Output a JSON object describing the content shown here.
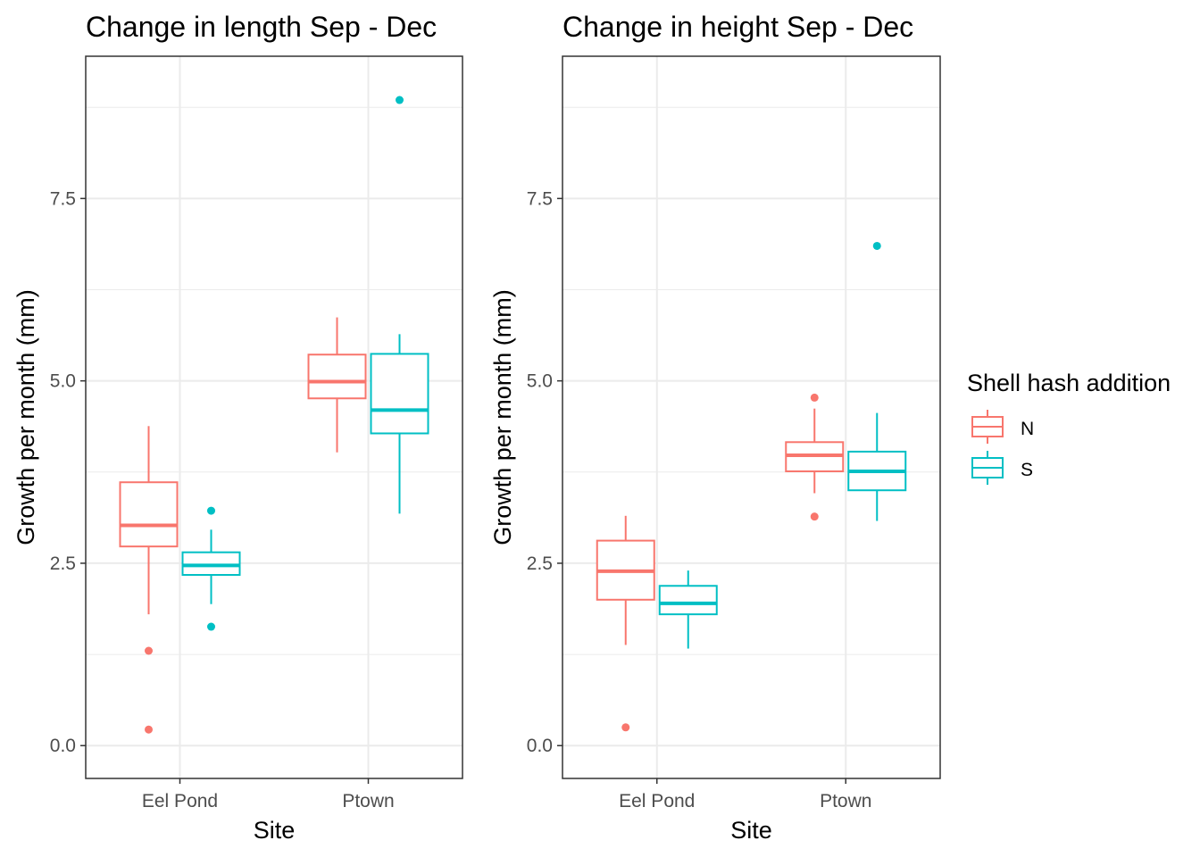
{
  "chart_data": [
    {
      "type": "box",
      "title": "Change in length Sep - Dec",
      "xlabel": "Site",
      "ylabel": "Growth per month (mm)",
      "categories": [
        "Eel Pond",
        "Ptown"
      ],
      "ylim": [
        -0.45,
        9.45
      ],
      "yticks": [
        0,
        2.5,
        5,
        7.5
      ],
      "ytick_labels": [
        "0.0",
        "2.5",
        "5.0",
        "7.5"
      ],
      "grid": true,
      "series": [
        {
          "name": "N",
          "boxes": [
            {
              "category": "Eel Pond",
              "lower_whisker": 1.8,
              "q1": 2.73,
              "median": 3.02,
              "q3": 3.61,
              "upper_whisker": 4.38,
              "outliers": [
                1.3,
                0.22
              ]
            },
            {
              "category": "Ptown",
              "lower_whisker": 4.02,
              "q1": 4.76,
              "median": 4.99,
              "q3": 5.36,
              "upper_whisker": 5.87,
              "outliers": []
            }
          ]
        },
        {
          "name": "S",
          "boxes": [
            {
              "category": "Eel Pond",
              "lower_whisker": 1.94,
              "q1": 2.34,
              "median": 2.47,
              "q3": 2.65,
              "upper_whisker": 2.96,
              "outliers": [
                3.22,
                1.63
              ]
            },
            {
              "category": "Ptown",
              "lower_whisker": 3.18,
              "q1": 4.28,
              "median": 4.6,
              "q3": 5.37,
              "upper_whisker": 5.64,
              "outliers": [
                8.85
              ]
            }
          ]
        }
      ]
    },
    {
      "type": "box",
      "title": "Change in height Sep - Dec",
      "xlabel": "Site",
      "ylabel": "Growth per month (mm)",
      "categories": [
        "Eel Pond",
        "Ptown"
      ],
      "ylim": [
        -0.45,
        9.45
      ],
      "yticks": [
        0,
        2.5,
        5,
        7.5
      ],
      "ytick_labels": [
        "0.0",
        "2.5",
        "5.0",
        "7.5"
      ],
      "grid": true,
      "series": [
        {
          "name": "N",
          "boxes": [
            {
              "category": "Eel Pond",
              "lower_whisker": 1.38,
              "q1": 2.0,
              "median": 2.39,
              "q3": 2.81,
              "upper_whisker": 3.15,
              "outliers": [
                0.25
              ]
            },
            {
              "category": "Ptown",
              "lower_whisker": 3.46,
              "q1": 3.76,
              "median": 3.98,
              "q3": 4.16,
              "upper_whisker": 4.62,
              "outliers": [
                4.77,
                3.14
              ]
            }
          ]
        },
        {
          "name": "S",
          "boxes": [
            {
              "category": "Eel Pond",
              "lower_whisker": 1.33,
              "q1": 1.8,
              "median": 1.95,
              "q3": 2.19,
              "upper_whisker": 2.4,
              "outliers": []
            },
            {
              "category": "Ptown",
              "lower_whisker": 3.08,
              "q1": 3.5,
              "median": 3.76,
              "q3": 4.03,
              "upper_whisker": 4.56,
              "outliers": [
                6.85
              ]
            }
          ]
        }
      ]
    }
  ],
  "legend": {
    "title": "Shell hash addition",
    "entries": [
      {
        "label": "N",
        "color": "#F8766D"
      },
      {
        "label": "S",
        "color": "#00BFC4"
      }
    ]
  },
  "colors": {
    "N": "#F8766D",
    "S": "#00BFC4",
    "grid": "#ebebeb",
    "panel_border": "#333333",
    "tick": "#333333"
  }
}
